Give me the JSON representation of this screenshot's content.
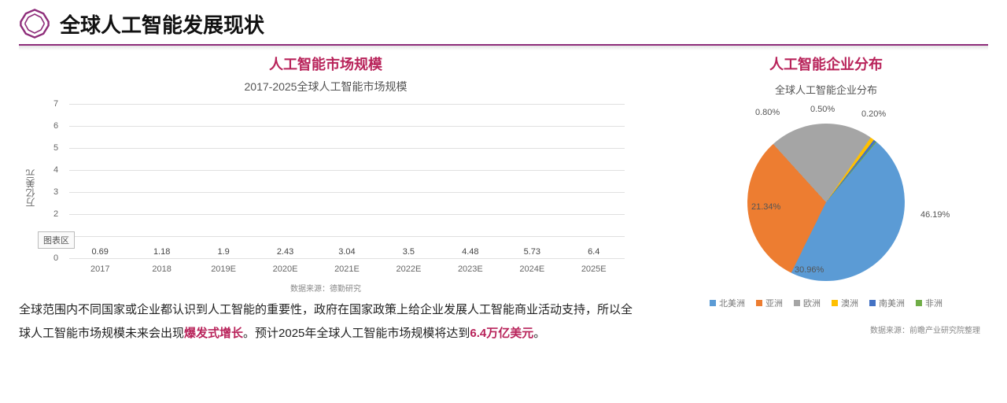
{
  "header": {
    "title": "全球人工智能发展现状",
    "accent": "#8e2d7a"
  },
  "left": {
    "section_title": "人工智能市场规模",
    "chart": {
      "type": "bar",
      "title": "2017-2025全球人工智能市场规模",
      "ylabel": "万亿美元",
      "ylim": [
        0,
        7
      ],
      "ytick_step": 1,
      "categories": [
        "2017",
        "2018",
        "2019E",
        "2020E",
        "2021E",
        "2022E",
        "2023E",
        "2024E",
        "2025E"
      ],
      "values": [
        0.69,
        1.18,
        1.9,
        2.43,
        3.04,
        3.5,
        4.48,
        5.73,
        6.4
      ],
      "bar_color": "#5b9bd5",
      "grid_color": "#e0e0e0",
      "text_color": "#444",
      "chartbox_label": "图表区",
      "source": "数据来源：德勤研究"
    },
    "paragraph_html": "全球范围内不同国家或企业都认识到人工智能的重要性，政府在国家政策上给企业发展人工智能商业活动支持，所以全球人工智能市场规模未来会出现<em>爆发式增长</em>。预计2025年全球人工智能市场规模将达到<em>6.4万亿美元</em>。"
  },
  "right": {
    "section_title": "人工智能企业分布",
    "chart": {
      "type": "pie",
      "title": "全球人工智能企业分布",
      "slices": [
        {
          "label": "北美洲",
          "value": 46.19,
          "color": "#5b9bd5",
          "display": "46.19%"
        },
        {
          "label": "亚洲",
          "value": 30.96,
          "color": "#ed7d31",
          "display": "30.96%"
        },
        {
          "label": "欧洲",
          "value": 21.34,
          "color": "#a5a5a5",
          "display": "21.34%"
        },
        {
          "label": "澳洲",
          "value": 0.8,
          "color": "#ffc000",
          "display": "0.80%"
        },
        {
          "label": "南美洲",
          "value": 0.5,
          "color": "#4472c4",
          "display": "0.50%"
        },
        {
          "label": "非洲",
          "value": 0.2,
          "color": "#70ad47",
          "display": "0.20%"
        }
      ],
      "legend_prefix": "■",
      "source": "数据来源：前瞻产业研究院整理"
    }
  }
}
